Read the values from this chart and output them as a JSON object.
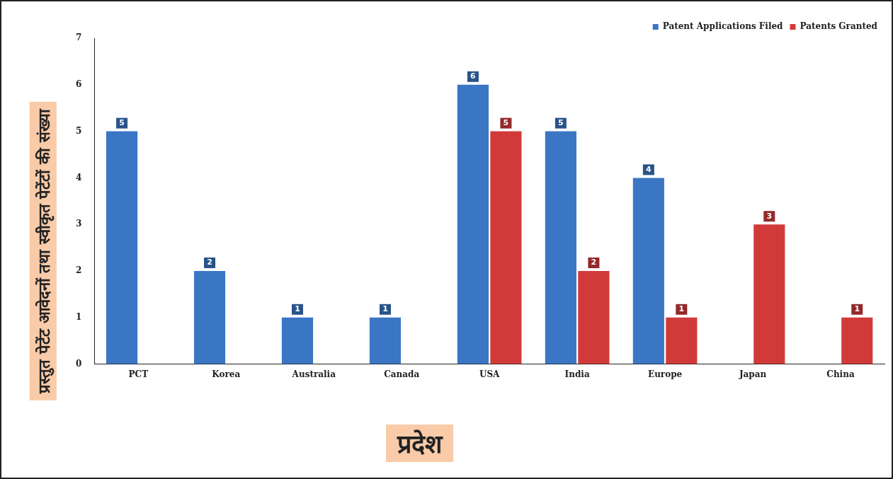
{
  "chart_data": {
    "type": "bar",
    "xlabel": "प्रदेश",
    "ylabel": "प्रस्तुत पेटेंट आवेदनों तथा स्वीकृत पेटेंटों की संख्या",
    "categories": [
      "PCT",
      "Korea",
      "Australia",
      "Canada",
      "USA",
      "India",
      "Europe",
      "Japan",
      "China"
    ],
    "series": [
      {
        "name": "Patent Applications Filed",
        "color": "#3a76c4",
        "values": [
          5,
          2,
          1,
          1,
          6,
          5,
          4,
          null,
          null
        ]
      },
      {
        "name": "Patents Granted",
        "color": "#d23a3a",
        "values": [
          null,
          null,
          null,
          null,
          5,
          2,
          1,
          3,
          1
        ]
      }
    ],
    "ylim": [
      0,
      7
    ],
    "yticks": [
      0,
      1,
      2,
      3,
      4,
      5,
      6,
      7
    ],
    "grid": false,
    "legend": "top right",
    "data_labels": true
  }
}
